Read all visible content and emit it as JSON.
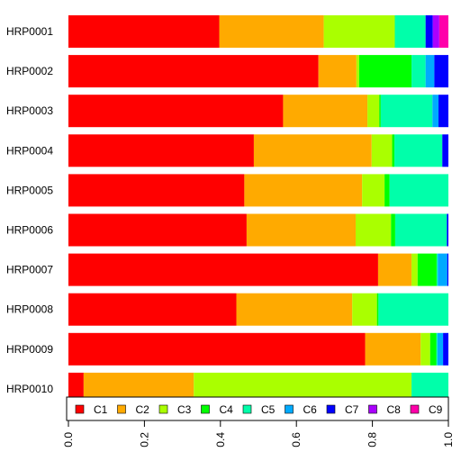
{
  "chart_data": {
    "type": "bar",
    "orientation": "horizontal",
    "stacked": true,
    "categories": [
      "HRP0001",
      "HRP0002",
      "HRP0003",
      "HRP0004",
      "HRP0005",
      "HRP0006",
      "HRP0007",
      "HRP0008",
      "HRP0009",
      "HRP0010"
    ],
    "xlim": [
      0,
      1
    ],
    "x_ticks": [
      "0.0",
      "0.2",
      "0.4",
      "0.6",
      "0.8",
      "1.0"
    ],
    "grid": false,
    "legend_position": "bottom-inside",
    "series": [
      {
        "name": "C1",
        "color": "#FF0000",
        "values": [
          0.397,
          0.658,
          0.565,
          0.488,
          0.463,
          0.469,
          0.815,
          0.442,
          0.781,
          0.04
        ]
      },
      {
        "name": "C2",
        "color": "#FFAA00",
        "values": [
          0.275,
          0.1,
          0.222,
          0.31,
          0.31,
          0.287,
          0.088,
          0.305,
          0.146,
          0.29
        ]
      },
      {
        "name": "C3",
        "color": "#AAFF00",
        "values": [
          0.187,
          0.007,
          0.031,
          0.054,
          0.059,
          0.093,
          0.016,
          0.065,
          0.025,
          0.573
        ]
      },
      {
        "name": "C4",
        "color": "#00FF00",
        "values": [
          0.0,
          0.138,
          0.004,
          0.006,
          0.013,
          0.011,
          0.05,
          0.004,
          0.016,
          0.0
        ]
      },
      {
        "name": "C5",
        "color": "#00FFAA",
        "values": [
          0.081,
          0.037,
          0.136,
          0.126,
          0.155,
          0.136,
          0.003,
          0.184,
          0.003,
          0.097
        ]
      },
      {
        "name": "C6",
        "color": "#00AAFF",
        "values": [
          0.0,
          0.023,
          0.016,
          0.0,
          0.0,
          0.0,
          0.025,
          0.0,
          0.015,
          0.0
        ]
      },
      {
        "name": "C7",
        "color": "#0000FF",
        "values": [
          0.019,
          0.037,
          0.026,
          0.016,
          0.0,
          0.004,
          0.003,
          0.0,
          0.014,
          0.0
        ]
      },
      {
        "name": "C8",
        "color": "#AA00FF",
        "values": [
          0.017,
          0.0,
          0.0,
          0.0,
          0.0,
          0.0,
          0.0,
          0.0,
          0.0,
          0.0
        ]
      },
      {
        "name": "C9",
        "color": "#FF00AA",
        "values": [
          0.024,
          0.0,
          0.0,
          0.0,
          0.0,
          0.0,
          0.0,
          0.0,
          0.0,
          0.0
        ]
      }
    ]
  }
}
